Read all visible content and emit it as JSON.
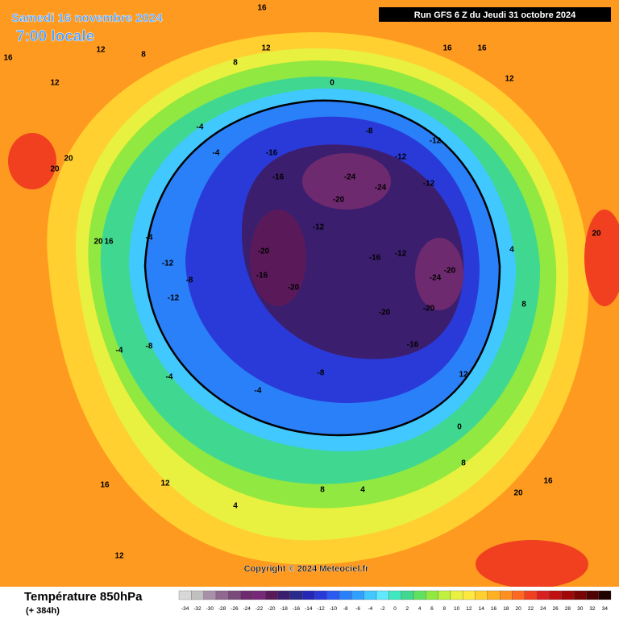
{
  "header": {
    "date": "Samedi 16 novembre 2024",
    "time": "7:00 locale",
    "run": "Run GFS 6 Z du Jeudi 31 octobre 2024"
  },
  "footer": {
    "variable": "Température 850hPa",
    "lead": "(+ 384h)",
    "copyright": "Copyright © 2024 Meteociel.fr"
  },
  "legend": {
    "ticks": [
      -34,
      -32,
      -30,
      -28,
      -26,
      -24,
      -22,
      -20,
      -18,
      -16,
      -14,
      -12,
      -10,
      -8,
      -6,
      -4,
      -2,
      0,
      2,
      4,
      6,
      8,
      10,
      12,
      14,
      16,
      18,
      20,
      22,
      24,
      26,
      28,
      30,
      32,
      34
    ],
    "colors": [
      "#d8d8d8",
      "#c0c0c0",
      "#a890a8",
      "#906890",
      "#7a4a7a",
      "#6e2a6e",
      "#782878",
      "#5a1a5a",
      "#3c1e6e",
      "#2a2a8a",
      "#2626b4",
      "#2a3ad8",
      "#2a5af0",
      "#2a80f8",
      "#30a0ff",
      "#40c8ff",
      "#60e8ff",
      "#40e8c0",
      "#40d890",
      "#60e060",
      "#90e840",
      "#c0f040",
      "#e8f040",
      "#ffe840",
      "#ffd030",
      "#ffb020",
      "#ff9020",
      "#ff6820",
      "#f04020",
      "#d82020",
      "#c01010",
      "#a00808",
      "#780404",
      "#500202",
      "#200000"
    ]
  },
  "contour_labels": [
    "20",
    "20",
    "20",
    "16",
    "12",
    "16",
    "12",
    "8",
    "8",
    "0",
    "-8",
    "-12",
    "-16",
    "-16",
    "-24",
    "-20",
    "-24",
    "-12",
    "-12",
    "-12",
    "-20",
    "-16",
    "-20",
    "-16",
    "-12",
    "-24",
    "-20",
    "-20",
    "-20",
    "-16",
    "-4",
    "-4",
    "-4",
    "-12",
    "-8",
    "-12",
    "-4",
    "-8",
    "-4",
    "-8",
    "-4",
    "4",
    "12",
    "16",
    "12",
    "16",
    "20",
    "20",
    "0",
    "12",
    "16",
    "16",
    "12",
    "8",
    "12",
    "16",
    "8",
    "4",
    "8",
    "4"
  ]
}
